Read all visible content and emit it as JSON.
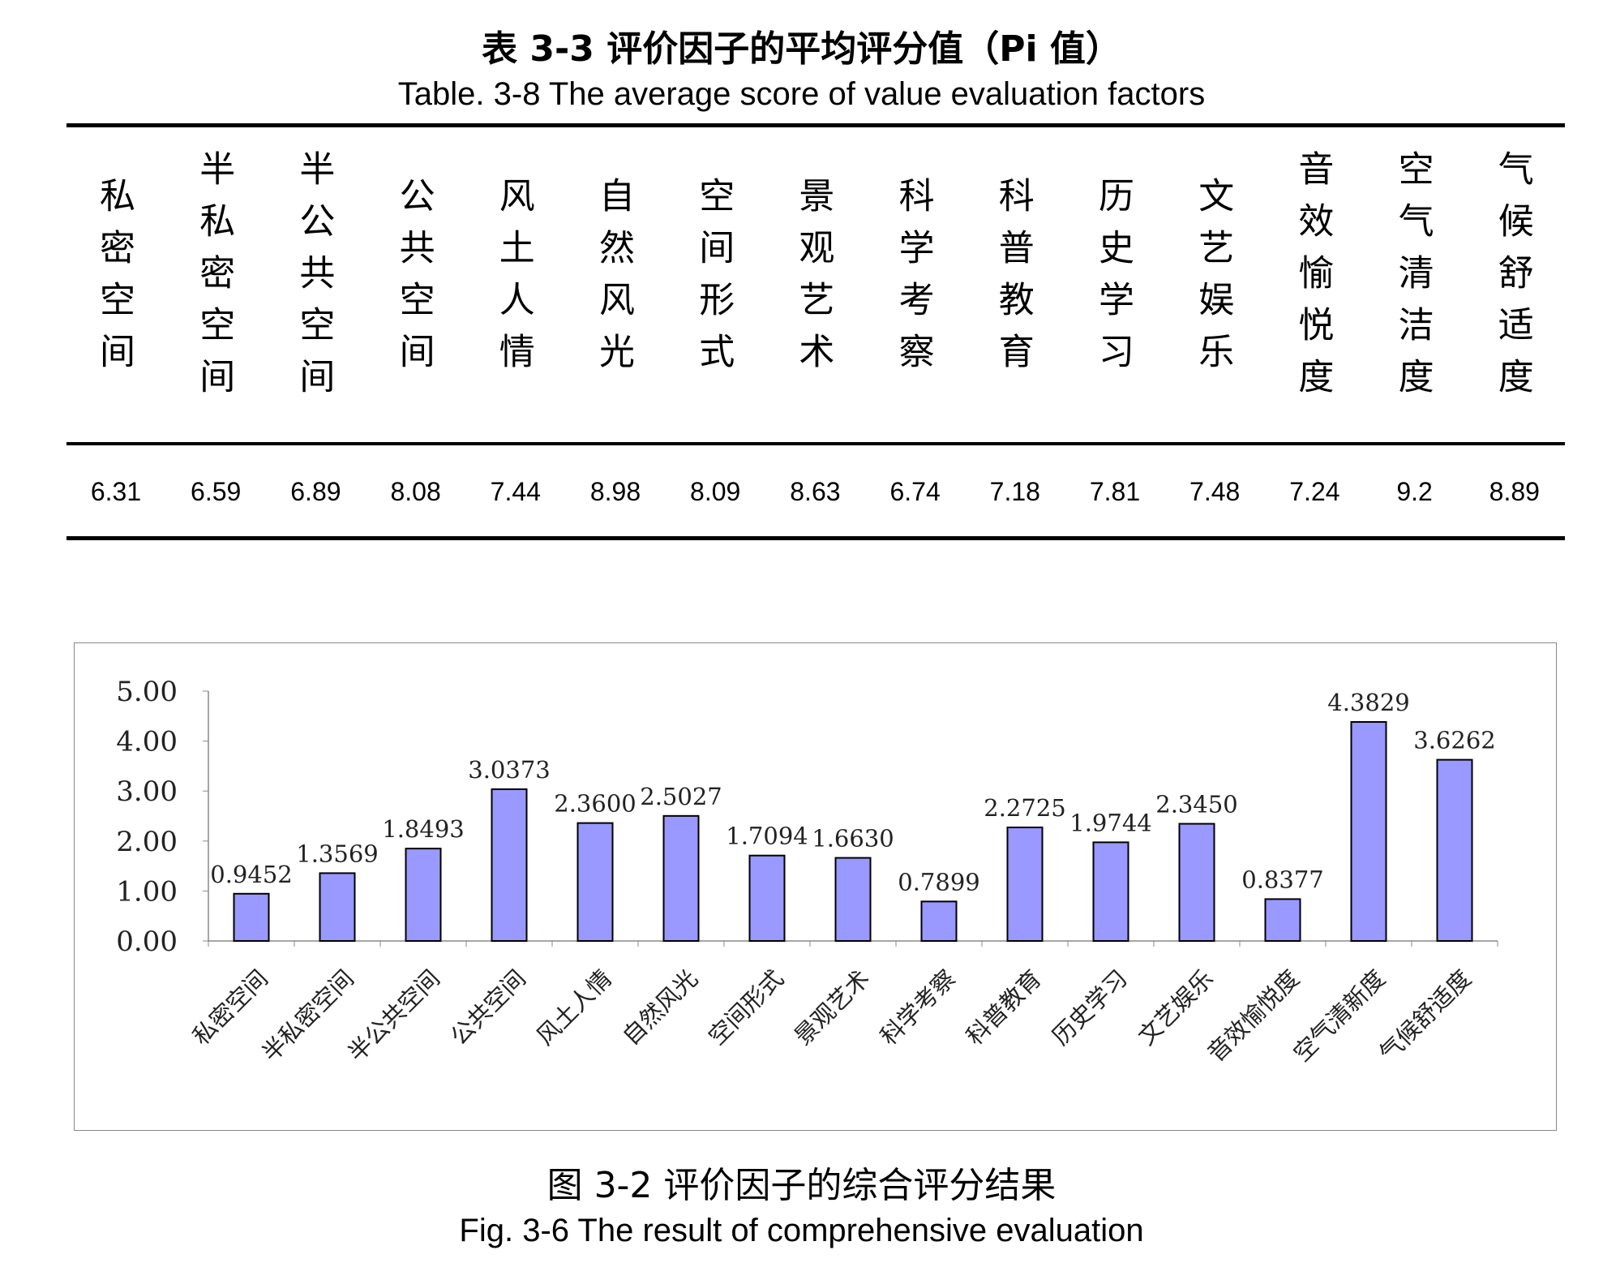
{
  "table": {
    "title_cn": "表 3-3  评价因子的平均评分值（Pi 值）",
    "title_en": "Table. 3-8 The average score of value evaluation factors",
    "headers": [
      "私密空间",
      "半私密空间",
      "半公共空间",
      "公共空间",
      "风土人情",
      "自然风光",
      "空间形式",
      "景观艺术",
      "科学考察",
      "科普教育",
      "历史学习",
      "文艺娱乐",
      "音效愉悦度",
      "空气清洁度",
      "气候舒适度"
    ],
    "values": [
      "6.31",
      "6.59",
      "6.89",
      "8.08",
      "7.44",
      "8.98",
      "8.09",
      "8.63",
      "6.74",
      "7.18",
      "7.81",
      "7.48",
      "7.24",
      "9.2",
      "8.89"
    ]
  },
  "chart_data": {
    "type": "bar",
    "categories": [
      "私密空间",
      "半私密空间",
      "半公共空间",
      "公共空间",
      "风土人情",
      "自然风光",
      "空间形式",
      "景观艺术",
      "科学考察",
      "科普教育",
      "历史学习",
      "文艺娱乐",
      "音效愉悦度",
      "空气清新度",
      "气候舒适度"
    ],
    "values": [
      0.9452,
      1.3569,
      1.8493,
      3.0373,
      2.36,
      2.5027,
      1.7094,
      1.663,
      0.7899,
      2.2725,
      1.9744,
      2.345,
      0.8377,
      4.3829,
      3.6262
    ],
    "data_labels": [
      "0.9452",
      "1.3569",
      "1.8493",
      "3.0373",
      "2.3600",
      "2.5027",
      "1.7094",
      "1.6630",
      "0.7899",
      "2.2725",
      "1.9744",
      "2.3450",
      "0.8377",
      "4.3829",
      "3.6262"
    ],
    "yticks": [
      "0.00",
      "1.00",
      "2.00",
      "3.00",
      "4.00",
      "5.00"
    ],
    "ylim": [
      0,
      5
    ],
    "grid": false,
    "bar_color": "#9999ff",
    "xlabel": "",
    "ylabel": ""
  },
  "caption": {
    "cn": "图 3-2 评价因子的综合评分结果",
    "en": "Fig. 3-6 The result of comprehensive evaluation"
  }
}
